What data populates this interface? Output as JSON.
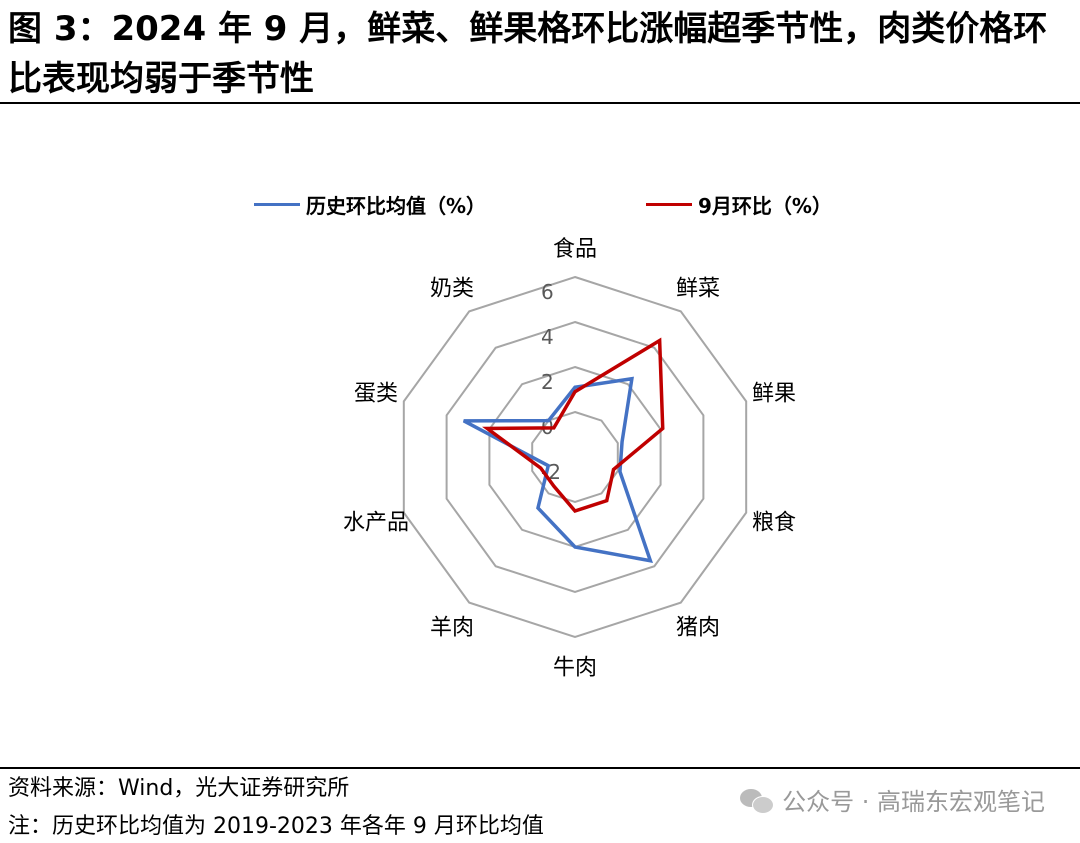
{
  "title": "图 3：2024 年 9 月，鲜菜、鲜果格环比涨幅超季节性，肉类价格环比表现均弱于季节性",
  "chart_data": {
    "type": "radar",
    "categories": [
      "食品",
      "鲜菜",
      "鲜果",
      "粮食",
      "猪肉",
      "牛肉",
      "羊肉",
      "水产品",
      "蛋类",
      "奶类"
    ],
    "series": [
      {
        "name": "历史环比均值（%）",
        "color": "#4472C4",
        "values": [
          1.1,
          2.3,
          0.2,
          0.1,
          3.7,
          2.0,
          0.8,
          -0.75,
          3.2,
          0.0
        ]
      },
      {
        "name": "9月环比（%）",
        "color": "#C00000",
        "values": [
          0.9,
          4.4,
          2.1,
          -0.2,
          0.4,
          0.4,
          -0.4,
          -0.4,
          2.1,
          -0.4
        ]
      }
    ],
    "rlim": [
      -2,
      6
    ],
    "ticks": [
      "-2",
      "0",
      "2",
      "4",
      "6"
    ],
    "legend_position": "top",
    "grid": true
  },
  "footer": {
    "source": "资料来源：Wind，光大证券研究所",
    "note": "注：历史环比均值为 2019-2023 年各年 9 月环比均值"
  },
  "watermark": {
    "text": "公众号 · 高瑞东宏观笔记",
    "icon": "wechat-icon"
  }
}
